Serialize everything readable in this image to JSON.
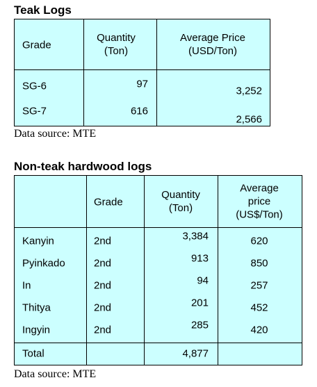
{
  "teak": {
    "title": "Teak Logs",
    "headers": [
      "Grade",
      "Quantity\n(Ton)",
      "Average Price\n(USD/Ton)"
    ],
    "rows": [
      [
        "SG-6",
        "97",
        "3,252"
      ],
      [
        "SG-7",
        "616",
        "2,566"
      ]
    ],
    "source": "Data source: MTE"
  },
  "nonteak": {
    "title": "Non-teak hardwood logs",
    "headers": [
      "Grade",
      "Quantity\n(Ton)",
      "Average\nprice\n(US$/Ton)"
    ],
    "rows": [
      [
        "Kanyin",
        "2nd",
        "3,384",
        "620"
      ],
      [
        "Pyinkado",
        "2nd",
        "913",
        "850"
      ],
      [
        "In",
        "2nd",
        "94",
        "257"
      ],
      [
        "Thitya",
        "2nd",
        "201",
        "452"
      ],
      [
        "Ingyin",
        "2nd",
        "285",
        "420"
      ]
    ],
    "total": [
      "Total",
      "4,877"
    ],
    "source": "Data source: MTE"
  }
}
